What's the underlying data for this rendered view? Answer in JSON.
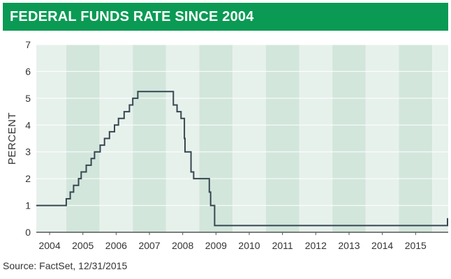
{
  "colors": {
    "banner": "#0a9a54",
    "band_dark": "#d2e6dc",
    "band_light": "#e7f1ec",
    "grid": "#ffffff",
    "line": "#37474f",
    "axis": "#555555"
  },
  "chart_data": {
    "type": "line",
    "title": "FEDERAL FUNDS RATE SINCE 2004",
    "xlabel": "",
    "ylabel": "PERCENT",
    "source": "Source: FactSet, 12/31/2015",
    "xlim": [
      2003.6,
      2015.98
    ],
    "ylim": [
      0,
      7
    ],
    "yticks": [
      0,
      1,
      2,
      3,
      4,
      5,
      6,
      7
    ],
    "xticks": [
      2004,
      2005,
      2006,
      2007,
      2008,
      2009,
      2010,
      2011,
      2012,
      2013,
      2014,
      2015
    ],
    "step": true,
    "series": [
      {
        "name": "Federal Funds Rate",
        "points": [
          [
            2003.6,
            1.0
          ],
          [
            2004.5,
            1.25
          ],
          [
            2004.62,
            1.5
          ],
          [
            2004.72,
            1.75
          ],
          [
            2004.87,
            2.0
          ],
          [
            2004.95,
            2.25
          ],
          [
            2005.1,
            2.5
          ],
          [
            2005.25,
            2.75
          ],
          [
            2005.35,
            3.0
          ],
          [
            2005.52,
            3.25
          ],
          [
            2005.65,
            3.5
          ],
          [
            2005.8,
            3.75
          ],
          [
            2005.95,
            4.0
          ],
          [
            2006.07,
            4.25
          ],
          [
            2006.24,
            4.5
          ],
          [
            2006.4,
            4.75
          ],
          [
            2006.5,
            5.0
          ],
          [
            2006.65,
            5.25
          ],
          [
            2007.72,
            4.75
          ],
          [
            2007.83,
            4.5
          ],
          [
            2007.95,
            4.25
          ],
          [
            2008.05,
            3.5
          ],
          [
            2008.07,
            3.0
          ],
          [
            2008.25,
            2.25
          ],
          [
            2008.33,
            2.0
          ],
          [
            2008.8,
            1.5
          ],
          [
            2008.84,
            1.0
          ],
          [
            2008.96,
            0.25
          ],
          [
            2015.96,
            0.5
          ]
        ]
      }
    ]
  }
}
